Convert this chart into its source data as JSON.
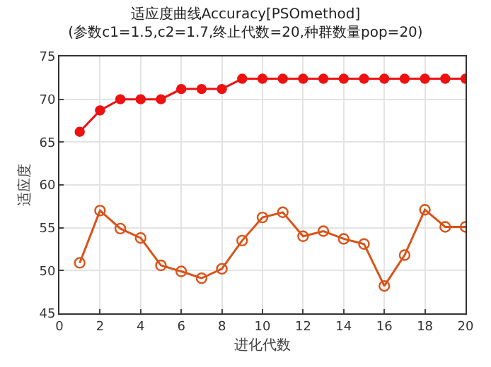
{
  "chart_data": {
    "type": "line",
    "title": "适应度曲线Accuracy[PSOmethod]",
    "subtitle": "(参数c1=1.5,c2=1.7,终止代数=20,种群数量pop=20)",
    "xlabel": "进化代数",
    "ylabel": "适应度",
    "x": [
      1,
      2,
      3,
      4,
      5,
      6,
      7,
      8,
      9,
      10,
      11,
      12,
      13,
      14,
      15,
      16,
      17,
      18,
      19,
      20
    ],
    "series": [
      {
        "color": "#ee1111",
        "marker": "circle",
        "values": [
          66.2,
          68.7,
          70,
          70,
          70,
          71.2,
          71.2,
          71.2,
          72.4,
          72.4,
          72.4,
          72.4,
          72.4,
          72.4,
          72.4,
          72.4,
          72.4,
          72.4,
          72.4,
          72.4
        ]
      },
      {
        "color": "#d95319",
        "marker": "circle-open",
        "values": [
          50.9,
          57,
          54.9,
          53.8,
          50.6,
          49.9,
          49.1,
          50.2,
          53.5,
          56.2,
          56.8,
          54,
          54.6,
          53.7,
          53.1,
          48.2,
          51.8,
          57.1,
          55.1,
          55.1
        ]
      }
    ],
    "xlim": [
      0,
      20
    ],
    "xticks": [
      0,
      2,
      4,
      6,
      8,
      10,
      12,
      14,
      16,
      18,
      20
    ],
    "ylim": [
      45,
      75
    ],
    "yticks": [
      45,
      50,
      55,
      60,
      65,
      70,
      75
    ],
    "grid": true,
    "line_style": "solid"
  }
}
